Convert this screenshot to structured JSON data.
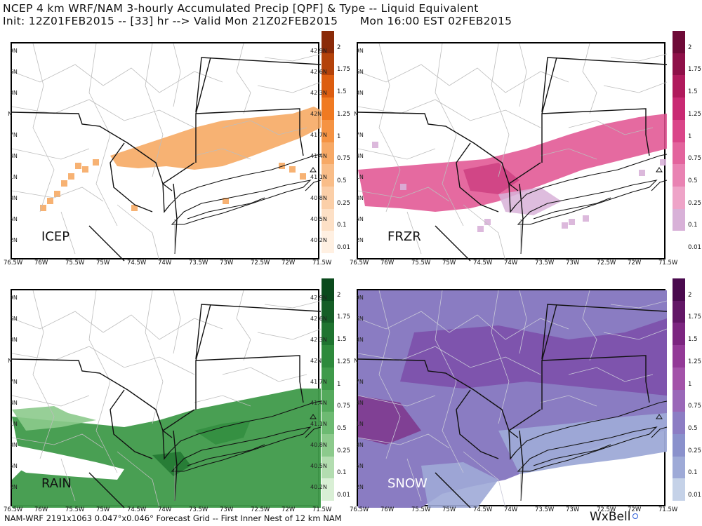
{
  "header": {
    "line1": "NCEP 4 km WRF/NAM 3-hourly Accumulated Precip [QPF] & Type -- Liquid Equivalent",
    "line2": "Init: 12Z01FEB2015 -- [33] hr --> Valid Mon 21Z02FEB2015      Mon 16:00 EST 02FEB2015"
  },
  "footer": {
    "text": "NAM-WRF 2191x1063 0.047°x0.046° Forecast Grid -- First Inner Nest of 12 km NAM",
    "brand": "WxBell"
  },
  "axes": {
    "lon_labels": [
      "76.5W",
      "76W",
      "75.5W",
      "75W",
      "74.5W",
      "74W",
      "73.5W",
      "73W",
      "72.5W",
      "72W",
      "71.5W"
    ],
    "lat_labels": [
      "42.9N",
      "42.6N",
      "42.3N",
      "42N",
      "41.7N",
      "41.4N",
      "41.1N",
      "40.8N",
      "40.5N",
      "40.2N"
    ]
  },
  "panels": [
    {
      "id": "icep",
      "label": "ICEP",
      "color": "#f6a55a"
    },
    {
      "id": "frzr",
      "label": "FRZR",
      "color": "#e0508f"
    },
    {
      "id": "rain",
      "label": "RAIN",
      "color": "#3f9a4a"
    },
    {
      "id": "snow",
      "label": "SNOW",
      "color": "#8a63b4"
    }
  ],
  "colorbars": {
    "icep": {
      "ticks": [
        "2",
        "1.75",
        "1.5",
        "1.25",
        "1",
        "0.75",
        "0.5",
        "0.25",
        "0.1",
        "0.01"
      ],
      "colors": [
        "#8a2a08",
        "#b3420a",
        "#dc5d10",
        "#f07a22",
        "#f59343",
        "#f7a966",
        "#f9bd88",
        "#fbcfa8",
        "#fde0c6",
        "#fff0e2"
      ]
    },
    "frzr": {
      "ticks": [
        "2",
        "1.75",
        "1.5",
        "1.25",
        "1",
        "0.75",
        "0.5",
        "0.25",
        "0.1",
        "0.01"
      ],
      "colors": [
        "#6e0a37",
        "#8e1048",
        "#b01a5c",
        "#c92a73",
        "#da4689",
        "#e3649d",
        "#e983b3",
        "#eea4c8",
        "#d8b1d8",
        "#ffffff"
      ]
    },
    "rain": {
      "ticks": [
        "2",
        "1.75",
        "1.5",
        "1.25",
        "1",
        "0.75",
        "0.5",
        "0.25",
        "0.1",
        "0.01"
      ],
      "colors": [
        "#0a4a1c",
        "#155e26",
        "#1f7430",
        "#2e8a3c",
        "#3f9a4a",
        "#54aa5c",
        "#6dba72",
        "#8cca8c",
        "#b3ddb0",
        "#d9efd5"
      ]
    },
    "snow": {
      "ticks": [
        "2",
        "1.75",
        "1.5",
        "1.25",
        "1",
        "0.75",
        "0.5",
        "0.25",
        "0.1",
        "0.01"
      ],
      "colors": [
        "#4a0a4e",
        "#621766",
        "#7c2680",
        "#933a97",
        "#a353a9",
        "#9a68b8",
        "#8c7dc4",
        "#8a91cc",
        "#9eaad7",
        "#c5d2e8"
      ]
    }
  }
}
